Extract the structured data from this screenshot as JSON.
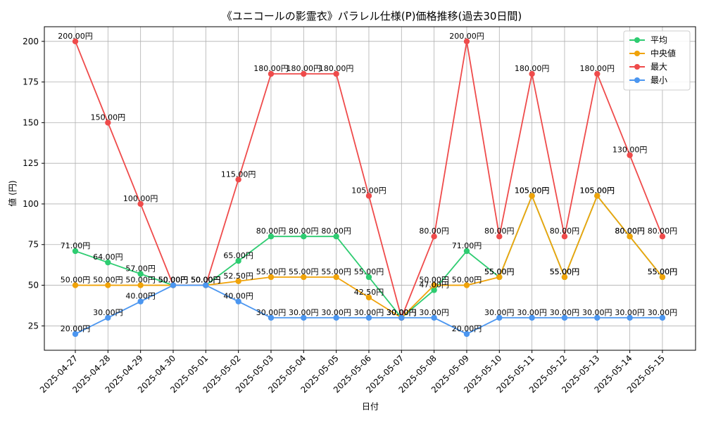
{
  "chart_data": {
    "type": "line",
    "title": "《ユニコールの影霊衣》パラレル仕様(P)価格推移(過去30日間)",
    "xlabel": "日付",
    "ylabel": "値 (円)",
    "ylim": [
      10,
      209
    ],
    "yticks": [
      25,
      50,
      75,
      100,
      125,
      150,
      175,
      200
    ],
    "grid": true,
    "legend_position": "top-right",
    "label_suffix": "円",
    "categories": [
      "2025-04-27",
      "2025-04-28",
      "2025-04-29",
      "2025-04-30",
      "2025-05-01",
      "2025-05-02",
      "2025-05-03",
      "2025-05-04",
      "2025-05-05",
      "2025-05-06",
      "2025-05-07",
      "2025-05-08",
      "2025-05-09",
      "2025-05-10",
      "2025-05-11",
      "2025-05-12",
      "2025-05-13",
      "2025-05-14",
      "2025-05-15"
    ],
    "series": [
      {
        "name": "平均",
        "color": "#2ecc71",
        "values": [
          71,
          64,
          57,
          50,
          50,
          65,
          80,
          80,
          80,
          55,
          30,
          47,
          71,
          55,
          105,
          55,
          105,
          80,
          55
        ]
      },
      {
        "name": "中央値",
        "color": "#f0a30a",
        "values": [
          50,
          50,
          50,
          50,
          50,
          52.5,
          55,
          55,
          55,
          42.5,
          30,
          50,
          50,
          55,
          105,
          55,
          105,
          80,
          55
        ]
      },
      {
        "name": "最大",
        "color": "#ef4b4b",
        "values": [
          200,
          150,
          100,
          50,
          50,
          115,
          180,
          180,
          180,
          105,
          30,
          80,
          200,
          80,
          180,
          80,
          180,
          130,
          80
        ]
      },
      {
        "name": "最小",
        "color": "#4b96f0",
        "values": [
          20,
          30,
          40,
          50,
          50,
          40,
          30,
          30,
          30,
          30,
          30,
          30,
          20,
          30,
          30,
          30,
          30,
          30,
          30
        ]
      }
    ]
  }
}
